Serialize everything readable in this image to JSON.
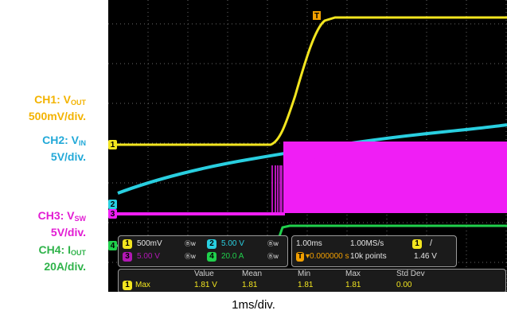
{
  "legend": {
    "ch1": {
      "name": "CH1: V",
      "sub": "OUT",
      "scale": "500mV/div.",
      "color": "#f3b300"
    },
    "ch2": {
      "name": "CH2: V",
      "sub": "IN",
      "scale": "5V/div.",
      "color": "#22a9d8"
    },
    "ch3": {
      "name": "CH3: V",
      "sub": "SW",
      "scale": "5V/div.",
      "color": "#e21cd3"
    },
    "ch4": {
      "name": "CH4: I",
      "sub": "OUT",
      "scale": "20A/div.",
      "color": "#2fb34a"
    }
  },
  "markers": {
    "trigger_top": "T",
    "ch1": "1",
    "ch2": "2",
    "ch3": "3",
    "ch4": "4"
  },
  "panel": {
    "ch1_num": "1",
    "ch1_scale": "500mV",
    "ch1_bw": "Ⓑw",
    "ch2_num": "2",
    "ch2_scale": "5.00 V",
    "ch2_bw": "Ⓑw",
    "ch3_num": "3",
    "ch3_scale": "5.00 V",
    "ch3_bw": "Ⓑw",
    "ch4_num": "4",
    "ch4_scale": "20.0 A",
    "ch4_bw": "Ⓑw",
    "timebase": "1.00ms",
    "sample_rate": "1.00MS/s",
    "trig_delay": "▾0.000000 s",
    "record": "10k points",
    "trig_ch": "1",
    "trig_slope": "/",
    "trig_level": "1.46 V"
  },
  "measure": {
    "headers": [
      "Value",
      "Mean",
      "Min",
      "Max",
      "Std Dev"
    ],
    "row": {
      "ch": "1",
      "label": "Max",
      "value": "1.81 V",
      "mean": "1.81",
      "min": "1.81",
      "max": "1.81",
      "std": "0.00"
    }
  },
  "footer": {
    "timebase_label": "1ms/div."
  },
  "colors": {
    "ch1": "#f2e51f",
    "ch2": "#29cfe0",
    "ch3": "#f01ef5",
    "ch4": "#20d04c",
    "grid": "#6a6a6a"
  }
}
